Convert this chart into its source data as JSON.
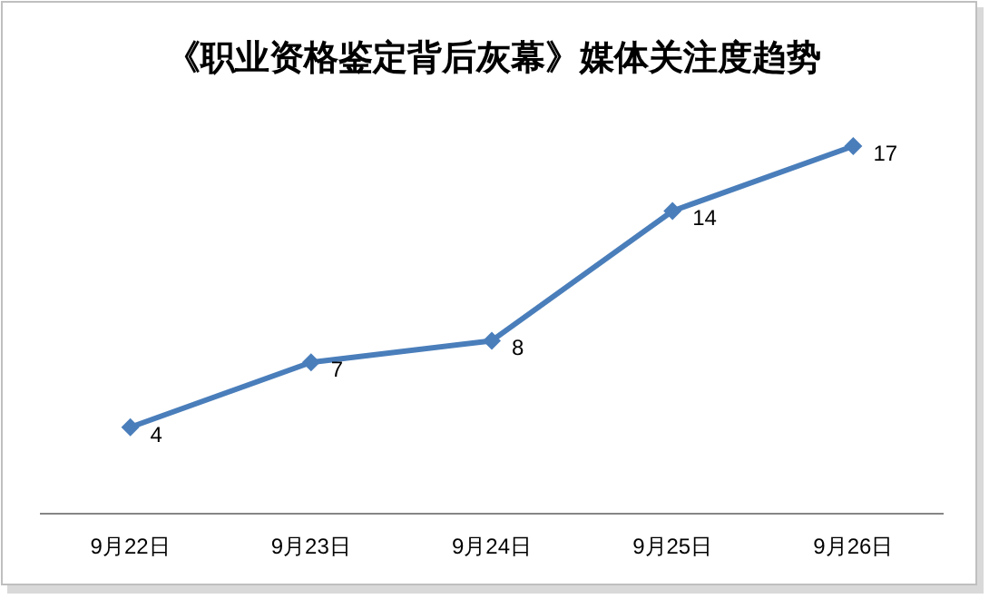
{
  "chart_data": {
    "type": "line",
    "title": "《职业资格鉴定背后灰幕》媒体关注度趋势",
    "categories": [
      "9月22日",
      "9月23日",
      "9月24日",
      "9月25日",
      "9月26日"
    ],
    "series": [
      {
        "color": "#4a7ebb",
        "values": [
          4,
          7,
          8,
          14,
          17
        ]
      }
    ],
    "data_labels": true,
    "marker": "diamond",
    "line_style": "solid"
  }
}
